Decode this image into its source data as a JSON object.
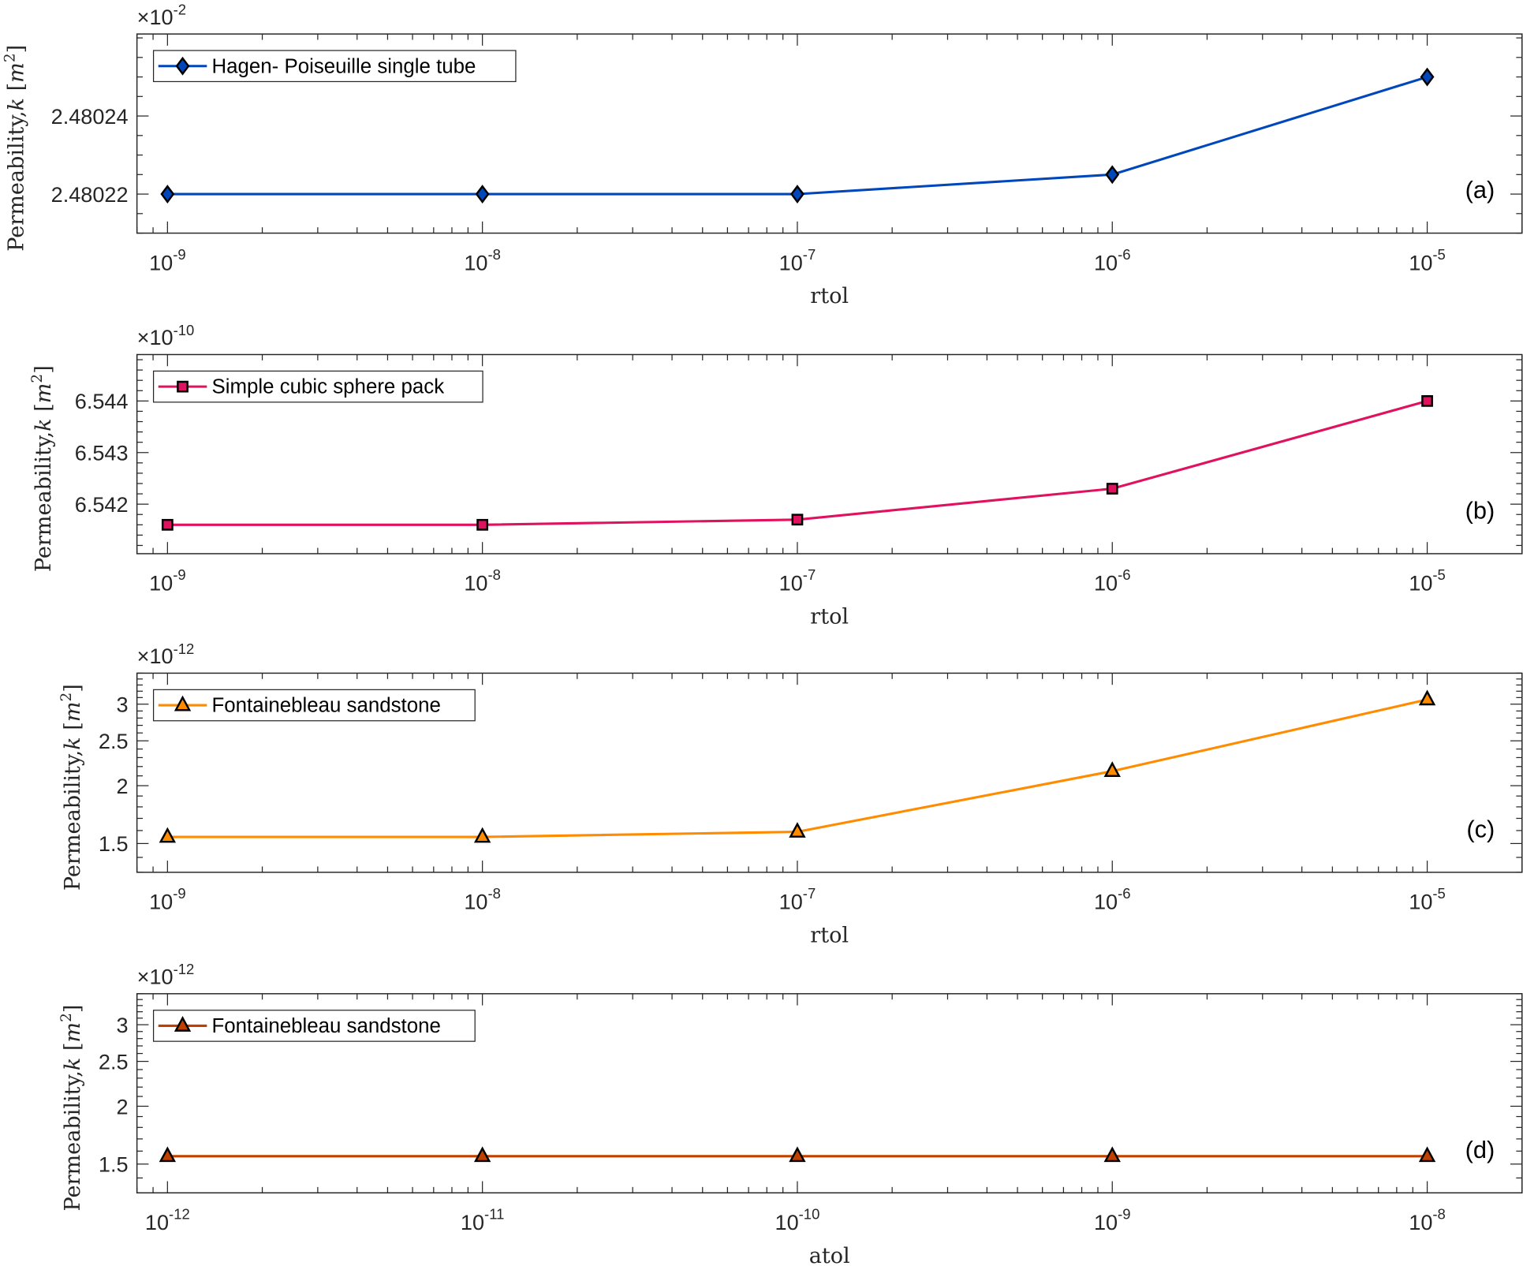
{
  "chart_data": [
    {
      "type": "line",
      "panel_label": "(a)",
      "xlabel": "rtol",
      "ylabel": "Permeability, k [m^2]",
      "y_multiplier_exponent": -2,
      "xscale": "log",
      "yscale": "linear",
      "xlim": [
        8e-10,
        2e-05
      ],
      "ylim": [
        2.48021,
        2.480261
      ],
      "xtick_exponents": [
        -9,
        -8,
        -7,
        -6,
        -5
      ],
      "yticks": [
        2.48022,
        2.48024
      ],
      "ytick_labels": [
        "2.48022",
        "2.48024"
      ],
      "yminor_step": 5e-06,
      "legend_position": "top-left",
      "series": [
        {
          "name": "Hagen- Poiseuille single tube",
          "marker": "diamond",
          "color": "#0047BB",
          "x": [
            1e-09,
            1e-08,
            1e-07,
            1e-06,
            1e-05
          ],
          "y": [
            2.48022,
            2.48022,
            2.48022,
            2.480225,
            2.48025
          ]
        }
      ]
    },
    {
      "type": "line",
      "panel_label": "(b)",
      "xlabel": "rtol",
      "ylabel": "Permeability, k [m^2]",
      "y_multiplier_exponent": -10,
      "xscale": "log",
      "yscale": "linear",
      "xlim": [
        8e-10,
        2e-05
      ],
      "ylim": [
        6.54104,
        6.5449
      ],
      "xtick_exponents": [
        -9,
        -8,
        -7,
        -6,
        -5
      ],
      "yticks": [
        6.542,
        6.543,
        6.544
      ],
      "ytick_labels": [
        "6.542",
        "6.543",
        "6.544"
      ],
      "yminor_step": 0.0002,
      "legend_position": "top-left",
      "series": [
        {
          "name": "Simple cubic sphere pack",
          "marker": "square",
          "color": "#E0115F",
          "x": [
            1e-09,
            1e-08,
            1e-07,
            1e-06,
            1e-05
          ],
          "y": [
            6.5416,
            6.5416,
            6.5417,
            6.5423,
            6.544
          ]
        }
      ]
    },
    {
      "type": "line",
      "panel_label": "(c)",
      "xlabel": "rtol",
      "ylabel": "Permeability, k [m^2]",
      "y_multiplier_exponent": -12,
      "xscale": "log",
      "yscale": "log",
      "xlim": [
        8e-10,
        2e-05
      ],
      "ylim": [
        1.3,
        3.5
      ],
      "xtick_exponents": [
        -9,
        -8,
        -7,
        -6,
        -5
      ],
      "yticks": [
        1.5,
        2,
        2.5,
        3
      ],
      "ytick_labels": [
        "1.5",
        "2",
        "2.5",
        "3"
      ],
      "yminor_step": 0.1,
      "legend_position": "top-left",
      "series": [
        {
          "name": "Fontainebleau sandstone",
          "marker": "triangle",
          "color": "#FF8C00",
          "x": [
            1e-09,
            1e-08,
            1e-07,
            1e-06,
            1e-05
          ],
          "y": [
            1.55,
            1.55,
            1.59,
            2.15,
            3.07
          ]
        }
      ]
    },
    {
      "type": "line",
      "panel_label": "(d)",
      "xlabel": "atol",
      "ylabel": "Permeability, k [m^2]",
      "y_multiplier_exponent": -12,
      "xscale": "log",
      "yscale": "log",
      "xlim": [
        8e-13,
        2e-08
      ],
      "ylim": [
        1.3,
        3.5
      ],
      "xtick_exponents": [
        -12,
        -11,
        -10,
        -9,
        -8
      ],
      "yticks": [
        1.5,
        2,
        2.5,
        3
      ],
      "ytick_labels": [
        "1.5",
        "2",
        "2.5",
        "3"
      ],
      "yminor_step": 0.1,
      "legend_position": "top-left",
      "series": [
        {
          "name": "Fontainebleau sandstone",
          "marker": "triangle",
          "color": "#C04000",
          "x": [
            1e-12,
            1e-11,
            1e-10,
            1e-09,
            1e-08
          ],
          "y": [
            1.56,
            1.56,
            1.56,
            1.56,
            1.56
          ]
        }
      ]
    }
  ]
}
